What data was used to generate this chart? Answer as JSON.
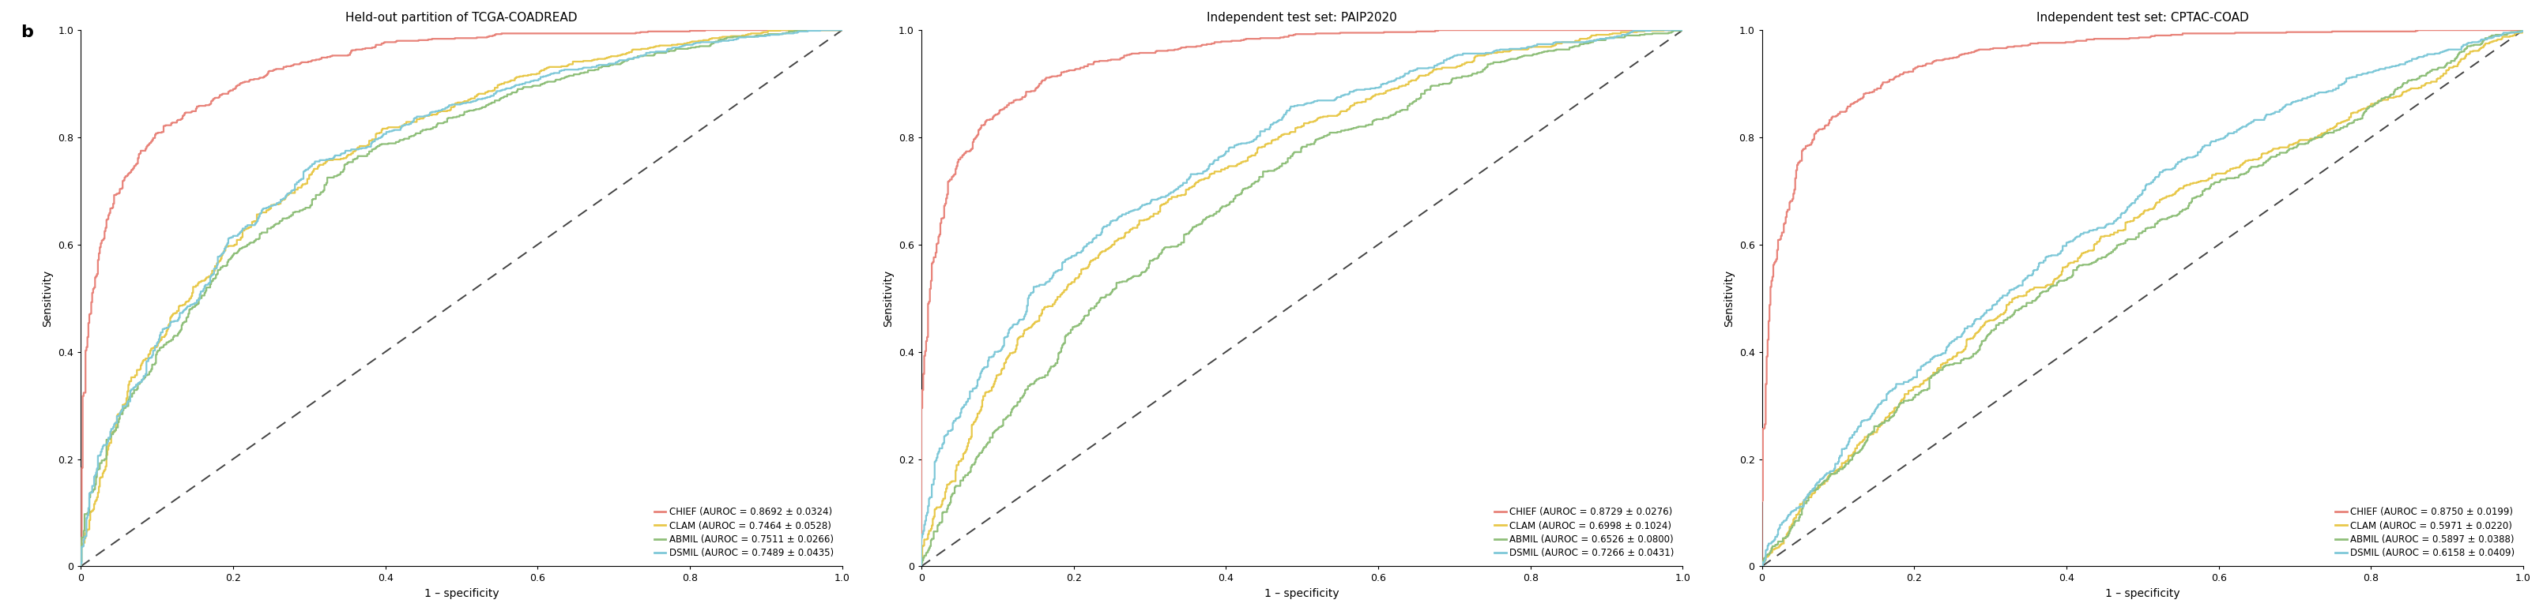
{
  "panels": [
    {
      "title": "Held-out partition of TCGA-COADREAD",
      "xlabel": "1 – specificity",
      "ylabel": "Sensitivity",
      "models": [
        {
          "name": "CHIEF",
          "auroc": 0.8692,
          "std": 0.0324,
          "color": "#E8837A"
        },
        {
          "name": "CLAM",
          "auroc": 0.7464,
          "std": 0.0528,
          "color": "#E8C84A"
        },
        {
          "name": "ABMIL",
          "auroc": 0.7511,
          "std": 0.0266,
          "color": "#8FBF7A"
        },
        {
          "name": "DSMIL",
          "auroc": 0.7489,
          "std": 0.0435,
          "color": "#7EC8D8"
        }
      ]
    },
    {
      "title": "Independent test set: PAIP2020",
      "xlabel": "1 – specificity",
      "ylabel": "Sensitivity",
      "models": [
        {
          "name": "CHIEF",
          "auroc": 0.8729,
          "std": 0.0276,
          "color": "#E8837A"
        },
        {
          "name": "CLAM",
          "auroc": 0.6998,
          "std": 0.1024,
          "color": "#E8C84A"
        },
        {
          "name": "ABMIL",
          "auroc": 0.6526,
          "std": 0.08,
          "color": "#8FBF7A"
        },
        {
          "name": "DSMIL",
          "auroc": 0.7266,
          "std": 0.0431,
          "color": "#7EC8D8"
        }
      ]
    },
    {
      "title": "Independent test set: CPTAC-COAD",
      "xlabel": "1 – specificity",
      "ylabel": "Sensitivity",
      "models": [
        {
          "name": "CHIEF",
          "auroc": 0.875,
          "std": 0.0199,
          "color": "#E8837A"
        },
        {
          "name": "CLAM",
          "auroc": 0.5971,
          "std": 0.022,
          "color": "#E8C84A"
        },
        {
          "name": "ABMIL",
          "auroc": 0.5897,
          "std": 0.0388,
          "color": "#8FBF7A"
        },
        {
          "name": "DSMIL",
          "auroc": 0.6158,
          "std": 0.0409,
          "color": "#7EC8D8"
        }
      ]
    }
  ],
  "panel_label": "b",
  "background_color": "#ffffff",
  "line_width": 1.6,
  "diag_color": "#444444",
  "tick_fontsize": 9,
  "label_fontsize": 10,
  "title_fontsize": 11,
  "legend_fontsize": 8.5
}
